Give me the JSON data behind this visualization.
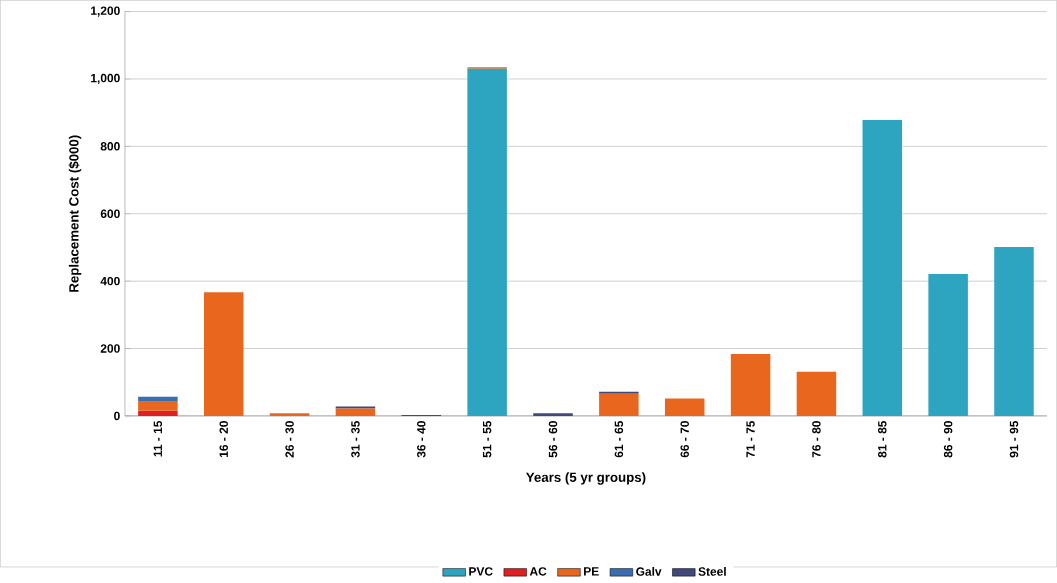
{
  "chart_data": {
    "type": "bar",
    "stacked": true,
    "xlabel": "Years (5 yr groups)",
    "ylabel": "Replacement Cost ($000)",
    "categories": [
      "11 - 15",
      "16 - 20",
      "26 - 30",
      "31 - 35",
      "36 - 40",
      "51 - 55",
      "56 - 60",
      "61 - 65",
      "66 - 70",
      "71 - 75",
      "76 - 80",
      "81 - 85",
      "86 - 90",
      "91 - 95"
    ],
    "series": [
      {
        "name": "PVC",
        "color": "#2ea5c0",
        "values": [
          null,
          null,
          null,
          null,
          null,
          1030,
          null,
          null,
          null,
          null,
          null,
          878,
          421,
          501
        ]
      },
      {
        "name": "AC",
        "color": "#e02020",
        "values": [
          15,
          null,
          null,
          null,
          null,
          null,
          null,
          null,
          null,
          null,
          null,
          null,
          null,
          null
        ]
      },
      {
        "name": "PE",
        "color": "#e8661e",
        "values": [
          27,
          367,
          8,
          22,
          null,
          5,
          null,
          66,
          52,
          184,
          131,
          null,
          null,
          null
        ]
      },
      {
        "name": "Galv",
        "color": "#3a6db0",
        "values": [
          15,
          null,
          null,
          null,
          null,
          null,
          null,
          null,
          null,
          null,
          null,
          null,
          null,
          null
        ]
      },
      {
        "name": "Steel",
        "color": "#3f4a7a",
        "values": [
          null,
          null,
          null,
          6,
          3,
          null,
          8,
          6,
          null,
          null,
          null,
          null,
          null,
          null
        ]
      }
    ],
    "ylim": [
      0,
      1200
    ],
    "yticks": [
      0,
      200,
      400,
      600,
      800,
      {
        "value": 1000,
        "label": "1,000"
      },
      {
        "value": 1200,
        "label": "1,200"
      }
    ],
    "grid": "y",
    "legend": "bottom"
  }
}
